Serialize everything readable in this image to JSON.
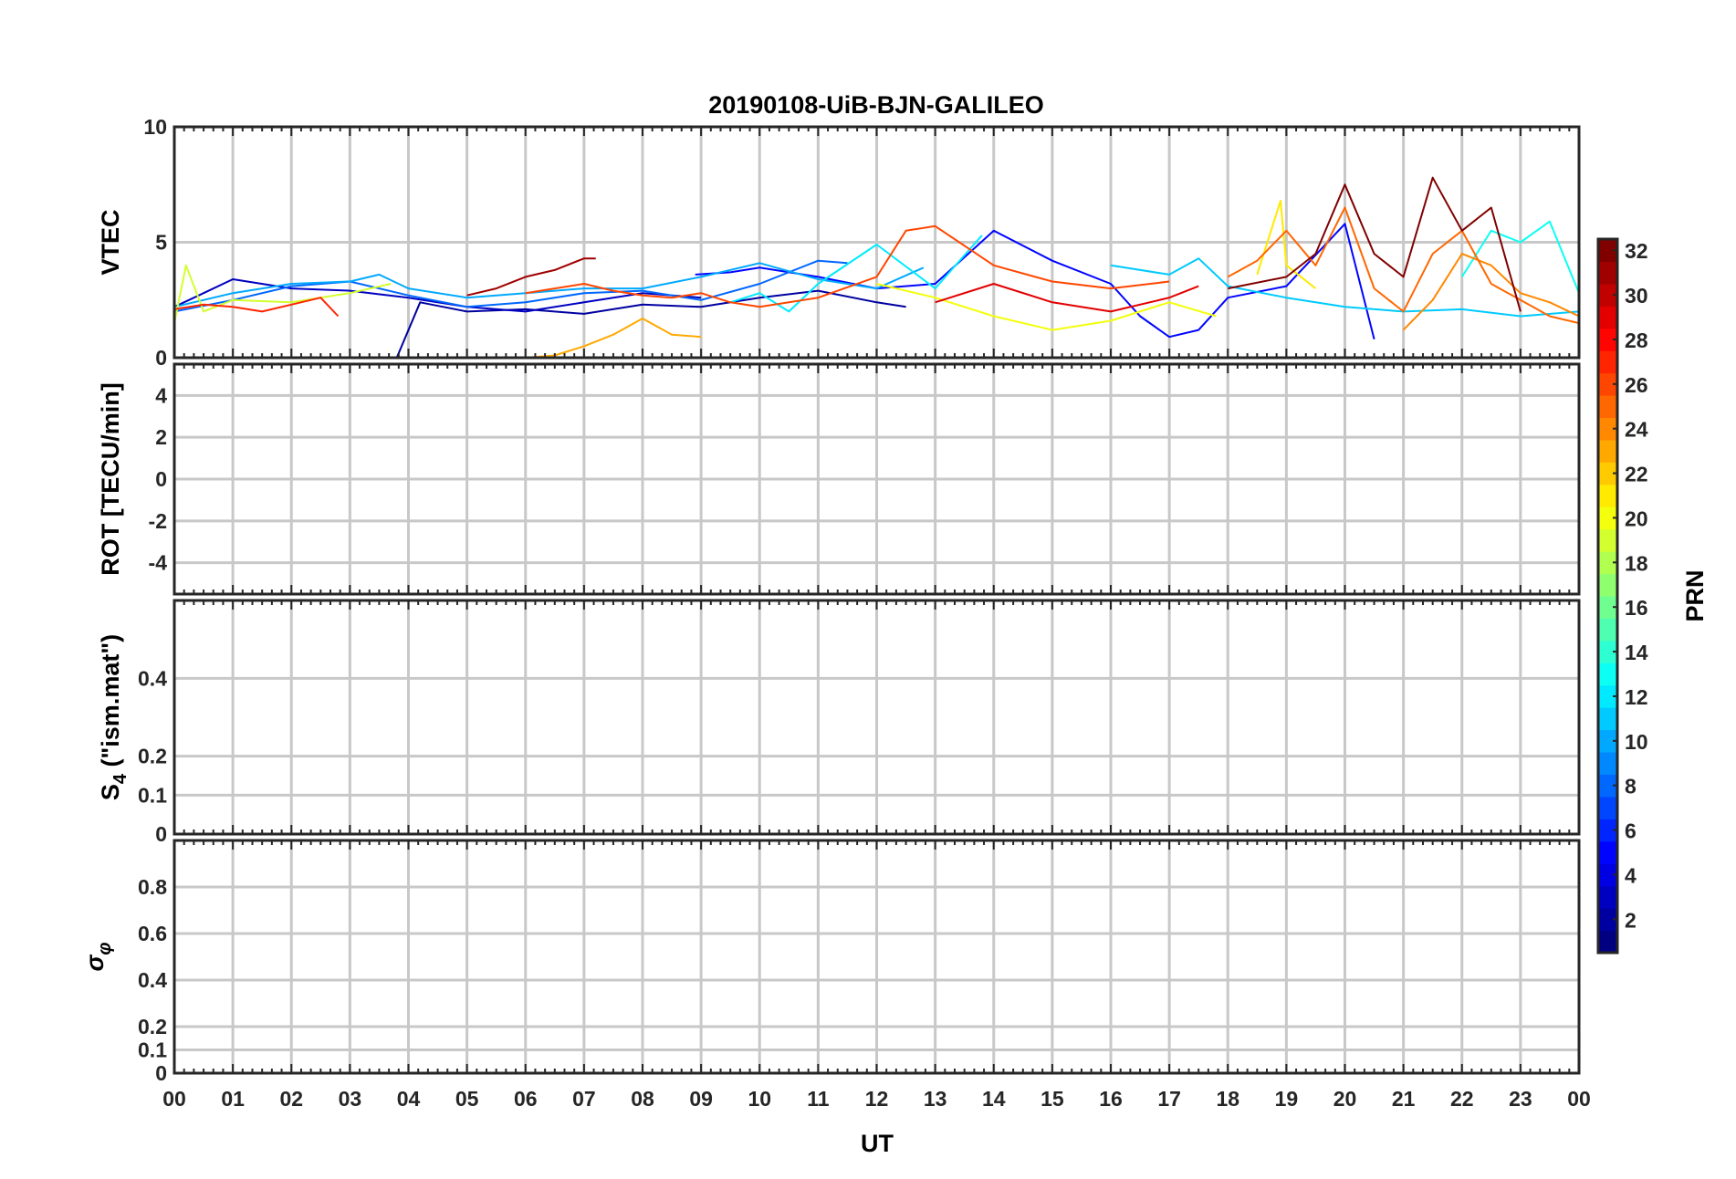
{
  "chart_data": {
    "type": "line",
    "title": "20190108-UiB-BJN-GALILEO",
    "xlabel": "UT",
    "x_ticks": [
      "00",
      "01",
      "02",
      "03",
      "04",
      "05",
      "06",
      "07",
      "08",
      "09",
      "10",
      "11",
      "12",
      "13",
      "14",
      "15",
      "16",
      "17",
      "18",
      "19",
      "20",
      "21",
      "22",
      "23",
      "00"
    ],
    "xlim": [
      0,
      24
    ],
    "grid": true,
    "panels": [
      {
        "ylabel": "VTEC",
        "ylim": [
          0,
          10
        ],
        "y_ticks": [
          "0",
          "5",
          "10"
        ],
        "series": [
          {
            "prn": 2,
            "x": [
              3.8,
              4.2,
              5,
              6,
              7,
              8,
              9,
              10,
              11,
              12,
              12.5
            ],
            "y": [
              0,
              2.4,
              2.0,
              2.1,
              1.9,
              2.3,
              2.2,
              2.6,
              2.9,
              2.4,
              2.2
            ]
          },
          {
            "prn": 3,
            "x": [
              0,
              0.5,
              1,
              2,
              3,
              4,
              5,
              6,
              7,
              8,
              9
            ],
            "y": [
              2.2,
              2.8,
              3.4,
              3.0,
              2.9,
              2.6,
              2.2,
              2.0,
              2.4,
              2.8,
              2.6
            ]
          },
          {
            "prn": 5,
            "x": [
              8.9,
              9.5,
              10,
              11,
              12,
              13,
              14,
              15,
              16,
              16.5,
              17,
              17.5,
              18,
              19,
              20,
              20.5
            ],
            "y": [
              3.6,
              3.7,
              3.9,
              3.5,
              3.0,
              3.2,
              5.5,
              4.2,
              3.2,
              1.8,
              0.9,
              1.2,
              2.6,
              3.1,
              5.8,
              0.8
            ]
          },
          {
            "prn": 8,
            "x": [
              0,
              1,
              2,
              3,
              4,
              5,
              6,
              7,
              8,
              9,
              10,
              11,
              11.5
            ],
            "y": [
              2.0,
              2.5,
              3.1,
              3.3,
              2.7,
              2.2,
              2.4,
              2.8,
              2.9,
              2.5,
              3.2,
              4.2,
              4.1
            ]
          },
          {
            "prn": 10,
            "x": [
              0,
              1,
              2,
              3,
              3.5,
              4,
              5,
              6,
              7,
              8,
              9,
              10,
              11,
              12,
              12.8
            ],
            "y": [
              2.2,
              2.8,
              3.2,
              3.3,
              3.6,
              3.0,
              2.6,
              2.8,
              3.0,
              3.0,
              3.5,
              4.1,
              3.4,
              3.0,
              3.9
            ]
          },
          {
            "prn": 11,
            "x": [
              16,
              17,
              17.5,
              18,
              19,
              20,
              21,
              22,
              23,
              24
            ],
            "y": [
              4.0,
              3.6,
              4.3,
              3.1,
              2.6,
              2.2,
              2.0,
              2.1,
              1.8,
              2.0
            ]
          },
          {
            "prn": 12,
            "x": [
              9.5,
              10,
              10.5,
              11,
              12,
              13,
              13.8
            ],
            "y": [
              2.4,
              2.8,
              2.0,
              3.2,
              4.9,
              3.0,
              5.3
            ]
          },
          {
            "prn": 13,
            "x": [
              22,
              22.5,
              23,
              23.5,
              24
            ],
            "y": [
              3.5,
              5.5,
              5.0,
              5.9,
              2.8
            ]
          },
          {
            "prn": 19,
            "x": [
              0,
              0.2,
              0.5,
              1,
              2,
              3,
              3.7
            ],
            "y": [
              1.5,
              4.0,
              2.0,
              2.5,
              2.4,
              2.8,
              3.2
            ]
          },
          {
            "prn": 20,
            "x": [
              12,
              13,
              14,
              15,
              16,
              17,
              17.8
            ],
            "y": [
              3.2,
              2.6,
              1.8,
              1.2,
              1.6,
              2.4,
              1.8
            ]
          },
          {
            "prn": 21,
            "x": [
              18.5,
              18.9,
              19,
              19.5
            ],
            "y": [
              3.6,
              6.8,
              4.0,
              3.0
            ]
          },
          {
            "prn": 23,
            "x": [
              6,
              6.5,
              7,
              7.5,
              8,
              8.5,
              9
            ],
            "y": [
              0,
              0.1,
              0.5,
              1.0,
              1.7,
              1.0,
              0.9
            ]
          },
          {
            "prn": 24,
            "x": [
              21,
              21.5,
              22,
              22.5,
              23,
              23.5,
              24
            ],
            "y": [
              1.2,
              2.5,
              4.5,
              4.0,
              2.8,
              2.4,
              1.8
            ]
          },
          {
            "prn": 25,
            "x": [
              18,
              18.5,
              19,
              19.5,
              20,
              20.5,
              21,
              21.5,
              22,
              22.5,
              23,
              23.5,
              24
            ],
            "y": [
              3.5,
              4.2,
              5.5,
              4.0,
              6.5,
              3.0,
              2.0,
              4.5,
              5.5,
              3.2,
              2.5,
              1.8,
              1.5
            ]
          },
          {
            "prn": 26,
            "x": [
              6,
              6.5,
              7,
              7.5,
              8,
              8.5,
              9,
              9.5,
              10,
              11,
              12,
              12.5,
              13,
              14,
              15,
              16,
              17
            ],
            "y": [
              2.8,
              3.0,
              3.2,
              2.9,
              2.7,
              2.6,
              2.8,
              2.4,
              2.2,
              2.6,
              3.5,
              5.5,
              5.7,
              4.0,
              3.3,
              3.0,
              3.3
            ]
          },
          {
            "prn": 27,
            "x": [
              0,
              0.5,
              1,
              1.5,
              2,
              2.5,
              2.8
            ],
            "y": [
              2.1,
              2.3,
              2.2,
              2.0,
              2.3,
              2.6,
              1.8
            ]
          },
          {
            "prn": 29,
            "x": [
              13,
              14,
              15,
              16,
              17,
              17.5
            ],
            "y": [
              2.4,
              3.2,
              2.4,
              2.0,
              2.6,
              3.1
            ]
          },
          {
            "prn": 31,
            "x": [
              5,
              5.5,
              6,
              6.5,
              7,
              7.2
            ],
            "y": [
              2.7,
              3.0,
              3.5,
              3.8,
              4.3,
              4.3
            ]
          },
          {
            "prn": 32,
            "x": [
              18,
              19,
              19.5,
              20,
              20.5,
              21,
              21.5,
              22,
              22.5,
              23
            ],
            "y": [
              3.0,
              3.5,
              4.5,
              7.5,
              4.5,
              3.5,
              7.8,
              5.5,
              6.5,
              2.0
            ]
          }
        ]
      },
      {
        "ylabel": "ROT [TECU/min]",
        "ylim": [
          -5.5,
          5.5
        ],
        "y_ticks": [
          "-4",
          "-2",
          "0",
          "2",
          "4"
        ]
      },
      {
        "ylabel": "S4 (\"ism.mat\")",
        "ylim": [
          0,
          0.6
        ],
        "y_ticks": [
          "0",
          "0.1",
          "0.2",
          "0.4"
        ]
      },
      {
        "ylabel": "σφ",
        "ylim": [
          0,
          1
        ],
        "y_ticks": [
          "0",
          "0.1",
          "0.2",
          "0.4",
          "0.6",
          "0.8"
        ]
      }
    ],
    "colorbar": {
      "label": "PRN",
      "colormap": "jet",
      "range": [
        1,
        32
      ],
      "ticks": [
        "2",
        "4",
        "6",
        "8",
        "10",
        "12",
        "14",
        "16",
        "18",
        "20",
        "22",
        "24",
        "26",
        "28",
        "30",
        "32"
      ]
    }
  }
}
